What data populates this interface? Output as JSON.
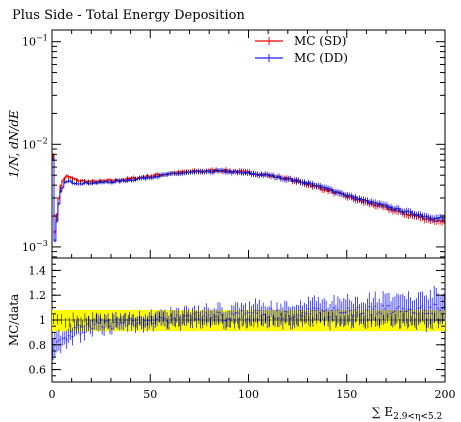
{
  "title": "Plus Side - Total Energy Deposition",
  "colors": {
    "sd": "#ff0000",
    "dd": "#2020ff",
    "data": "#000000",
    "band": "#ffff00"
  },
  "chart_data": [
    {
      "type": "line",
      "title": "Plus Side - Total Energy Deposition",
      "ylabel": "1/N, dN/dE",
      "yscale": "log",
      "xlim": [
        0,
        200
      ],
      "ylim": [
        0.00078,
        0.13
      ],
      "yticks": [
        {
          "value": 0.001,
          "base": "10",
          "exp": "−3"
        },
        {
          "value": 0.01,
          "base": "10",
          "exp": "−2"
        },
        {
          "value": 0.1,
          "base": "10",
          "exp": "−1"
        }
      ],
      "legend_position": "top-right",
      "series": [
        {
          "name": "MC (SD)",
          "color": "#ff0000",
          "x": [
            0,
            1,
            2,
            3,
            4,
            5,
            6,
            7,
            8,
            10,
            12,
            15,
            20,
            30,
            40,
            50,
            60,
            70,
            80,
            85,
            90,
            100,
            110,
            120,
            130,
            140,
            150,
            160,
            170,
            180,
            185,
            190,
            195,
            200
          ],
          "y": [
            0.06,
            0.0011,
            0.0017,
            0.0026,
            0.0036,
            0.0042,
            0.0046,
            0.0049,
            0.0048,
            0.0047,
            0.0045,
            0.0044,
            0.0043,
            0.0044,
            0.0046,
            0.0049,
            0.0052,
            0.0054,
            0.0055,
            0.0056,
            0.0055,
            0.0053,
            0.005,
            0.0046,
            0.0041,
            0.0036,
            0.0031,
            0.0027,
            0.0024,
            0.0021,
            0.002,
            0.0019,
            0.0018,
            0.0018
          ]
        },
        {
          "name": "MC (DD)",
          "color": "#2020ff",
          "x": [
            0,
            1,
            2,
            3,
            4,
            5,
            6,
            7,
            8,
            10,
            12,
            15,
            20,
            30,
            40,
            50,
            60,
            70,
            80,
            85,
            90,
            100,
            110,
            120,
            130,
            140,
            150,
            160,
            170,
            180,
            185,
            190,
            195,
            200
          ],
          "y": [
            0.055,
            0.0009,
            0.0014,
            0.0022,
            0.0031,
            0.0037,
            0.0041,
            0.0043,
            0.0043,
            0.0043,
            0.0042,
            0.0042,
            0.0042,
            0.0043,
            0.0045,
            0.0048,
            0.0051,
            0.0053,
            0.0054,
            0.0055,
            0.0054,
            0.0052,
            0.005,
            0.0046,
            0.0042,
            0.0037,
            0.0032,
            0.0028,
            0.0025,
            0.0022,
            0.0021,
            0.002,
            0.0019,
            0.0019
          ]
        }
      ]
    },
    {
      "type": "scatter",
      "ylabel": "MC/data",
      "xlabel": "∑ E",
      "xlabel_sub": "2.9<η<5.2",
      "xlim": [
        0,
        200
      ],
      "ylim": [
        0.5,
        1.5
      ],
      "xticks": [
        0,
        50,
        100,
        150,
        200
      ],
      "yticks": [
        "0.6",
        "0.8",
        "1",
        "1.2",
        "1.4"
      ],
      "band": {
        "x": [
          0,
          200
        ],
        "low": 0.91,
        "high": 1.08,
        "color": "#ffff00"
      },
      "series": [
        {
          "name": "MC (DD)",
          "color": "#2020ff",
          "x": [
            1,
            5,
            10,
            15,
            20,
            30,
            40,
            50,
            60,
            70,
            80,
            90,
            100,
            110,
            120,
            130,
            140,
            150,
            160,
            170,
            180,
            190,
            200
          ],
          "y": [
            0.75,
            0.85,
            0.9,
            0.93,
            0.95,
            0.97,
            0.98,
            1.0,
            1.01,
            1.02,
            1.03,
            1.03,
            1.04,
            1.05,
            1.05,
            1.06,
            1.06,
            1.07,
            1.07,
            1.08,
            1.08,
            1.09,
            1.09
          ],
          "err": [
            0.1,
            0.07,
            0.06,
            0.06,
            0.06,
            0.06,
            0.06,
            0.06,
            0.06,
            0.07,
            0.07,
            0.07,
            0.08,
            0.08,
            0.08,
            0.09,
            0.09,
            0.1,
            0.1,
            0.11,
            0.12,
            0.13,
            0.14
          ]
        }
      ]
    }
  ]
}
